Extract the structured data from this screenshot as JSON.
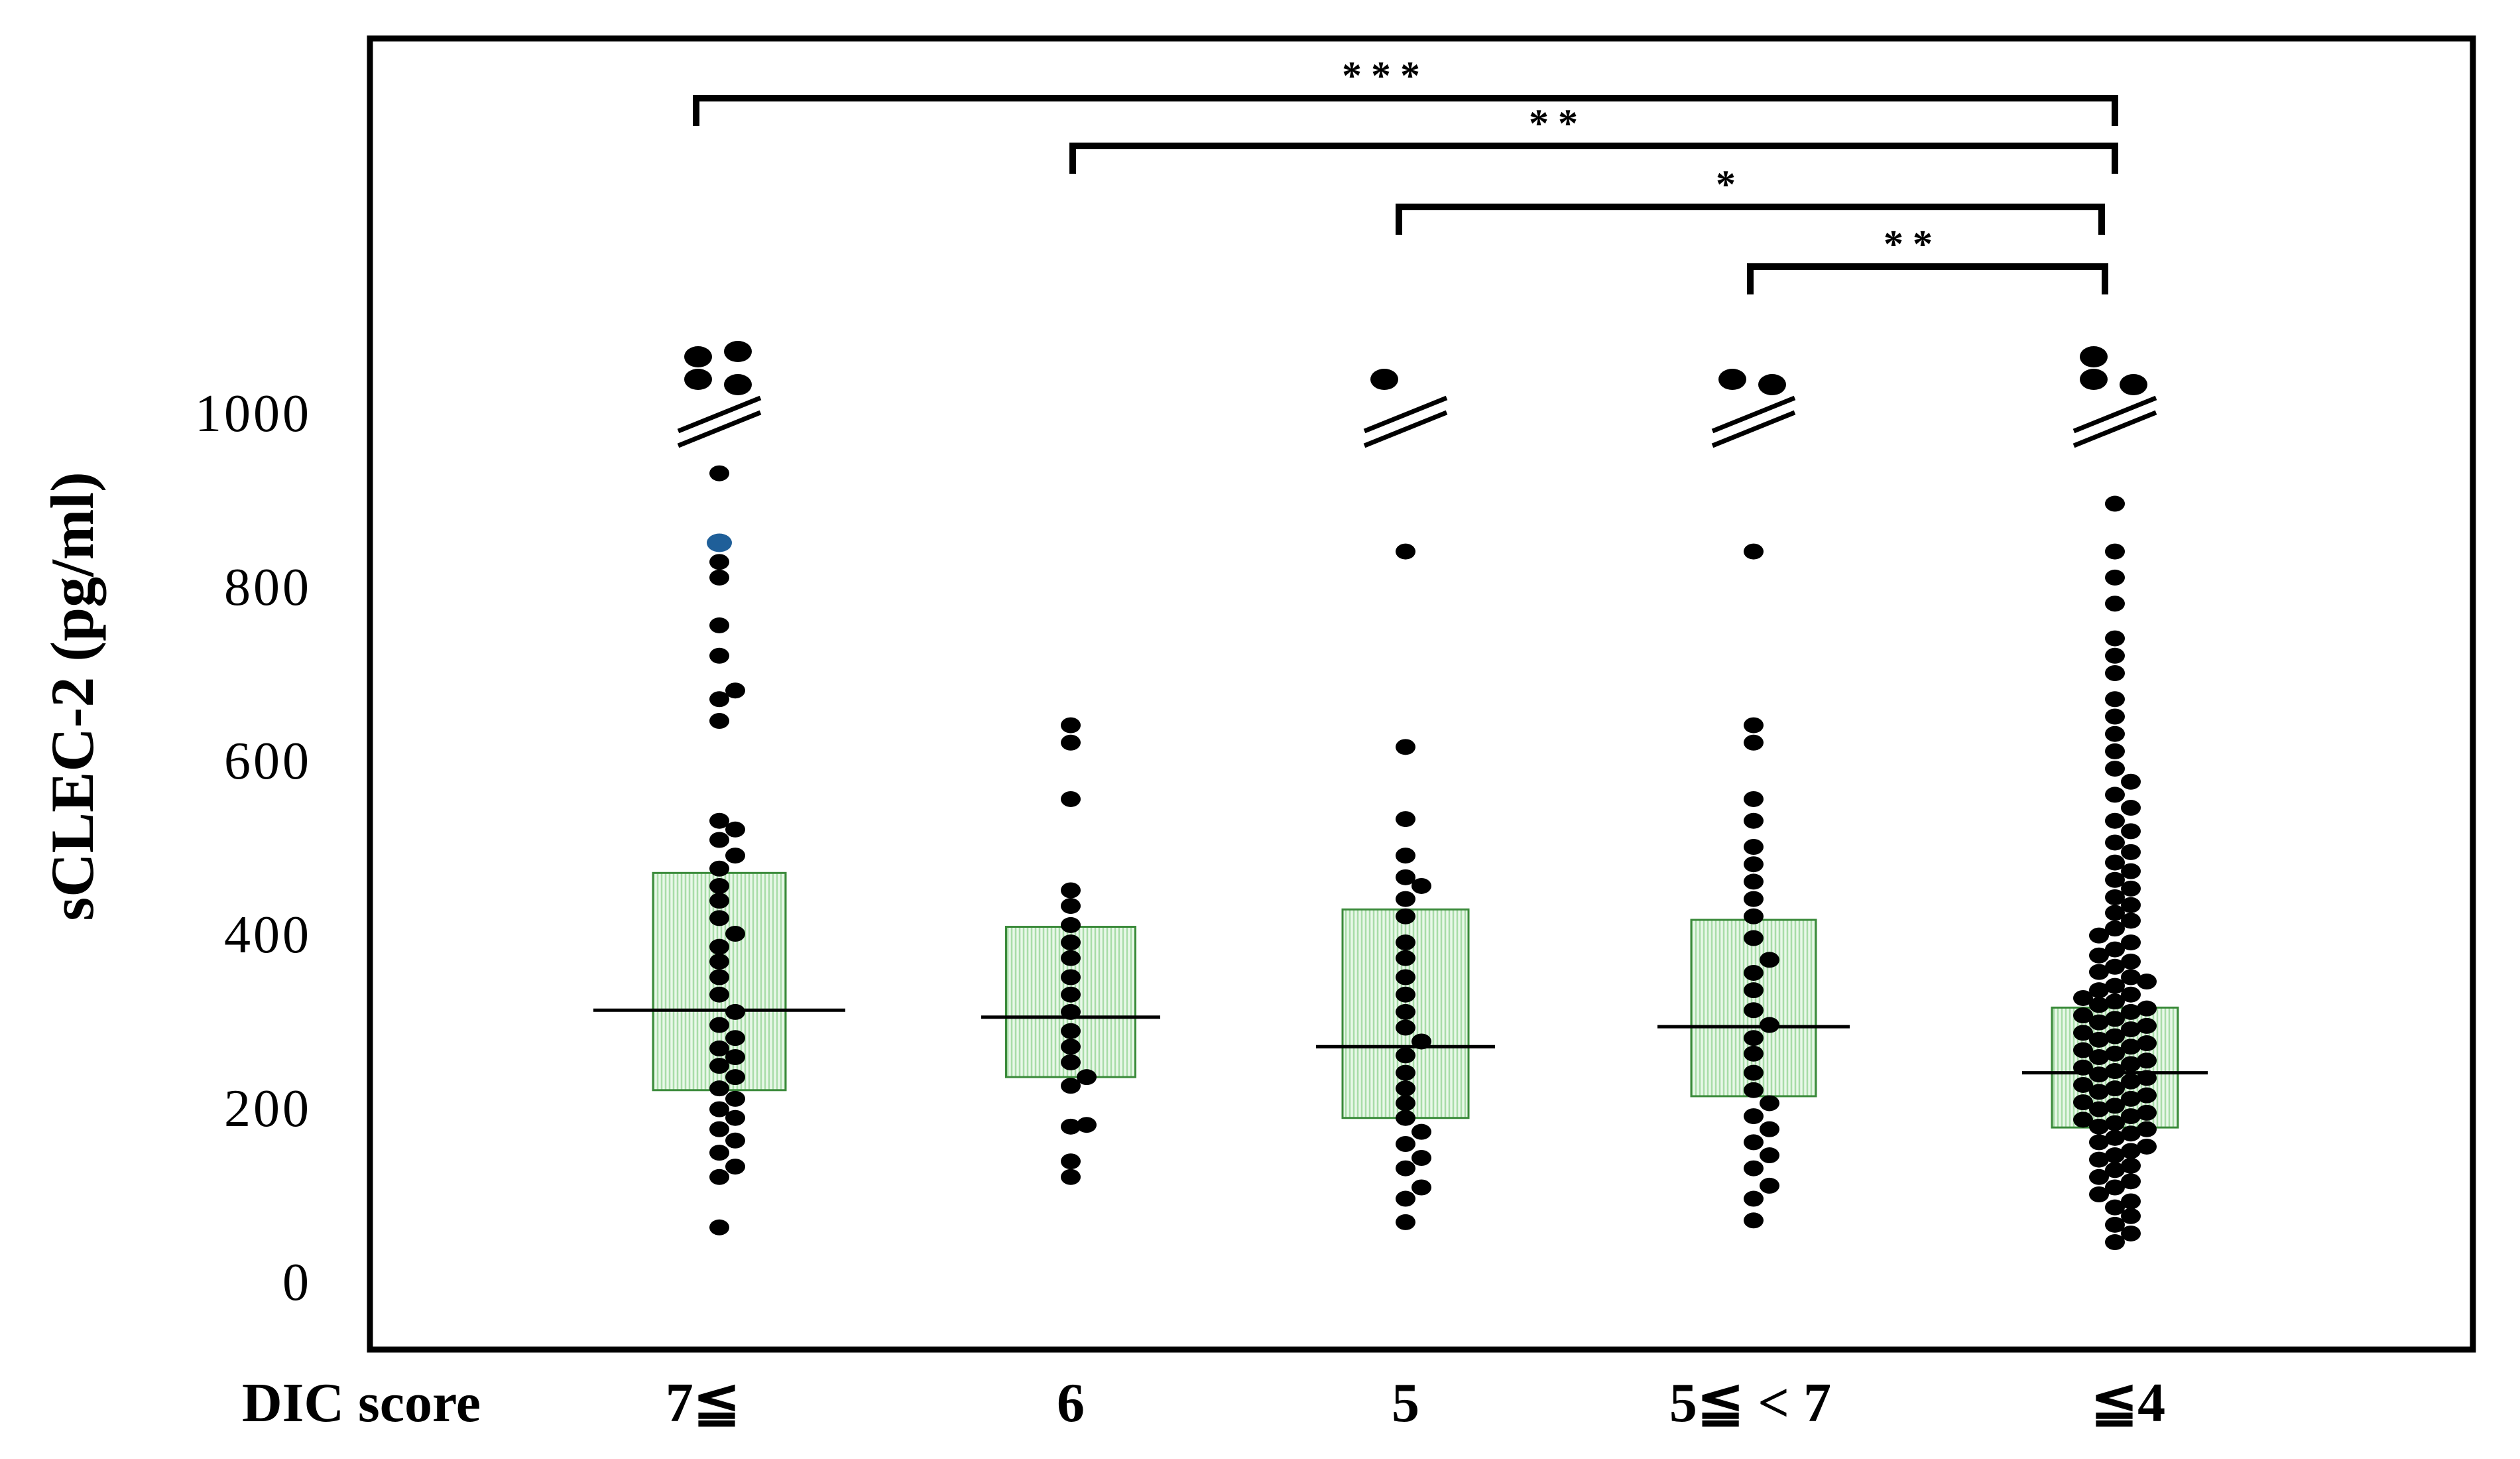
{
  "chart_data": {
    "type": "box_dot",
    "ylabel": "sCLEC-2 (pg/ml)",
    "xlabel": "DIC score",
    "ylim": [
      0,
      1000
    ],
    "yticks": [
      0,
      200,
      400,
      600,
      800,
      1000
    ],
    "ytick_labels": [
      "0",
      "200",
      "400",
      "600",
      "800",
      "1000"
    ],
    "axis_break_above": 1000,
    "grid": false,
    "categories": [
      "7≦",
      "6",
      "5",
      "5≦ < 7",
      "≦4"
    ],
    "boxes": [
      {
        "category": "7≦",
        "q1": 220,
        "median": 312,
        "q3": 470
      },
      {
        "category": "6",
        "q1": 235,
        "median": 304,
        "q3": 408
      },
      {
        "category": "5",
        "q1": 188,
        "median": 270,
        "q3": 428
      },
      {
        "category": "5≦ < 7",
        "q1": 213,
        "median": 293,
        "q3": 416
      },
      {
        "category": "≦4",
        "q1": 177,
        "median": 240,
        "q3": 315
      }
    ],
    "points": [
      [
        62,
        120,
        132,
        148,
        162,
        175,
        188,
        198,
        210,
        222,
        235,
        248,
        258,
        268,
        280,
        295,
        310,
        330,
        350,
        368,
        385,
        400,
        418,
        438,
        455,
        475,
        490,
        508,
        520,
        530,
        645,
        670,
        680,
        720,
        755,
        810,
        828,
        930
      ],
      [
        120,
        138,
        178,
        180,
        225,
        235,
        252,
        270,
        288,
        310,
        330,
        350,
        372,
        390,
        410,
        432,
        450,
        555,
        620,
        640
      ],
      [
        68,
        95,
        108,
        130,
        142,
        158,
        172,
        188,
        205,
        222,
        240,
        260,
        276,
        292,
        310,
        330,
        350,
        372,
        390,
        420,
        440,
        455,
        465,
        490,
        532,
        615,
        840
      ],
      [
        70,
        95,
        110,
        130,
        145,
        160,
        175,
        190,
        205,
        220,
        240,
        262,
        280,
        295,
        312,
        335,
        355,
        370,
        395,
        420,
        440,
        460,
        480,
        500,
        530,
        555,
        620,
        640,
        840
      ],
      [
        45,
        55,
        65,
        75,
        85,
        92,
        100,
        108,
        115,
        120,
        128,
        133,
        140,
        145,
        150,
        155,
        160,
        165,
        170,
        175,
        178,
        182,
        186,
        190,
        194,
        198,
        202,
        206,
        210,
        214,
        218,
        222,
        226,
        230,
        234,
        238,
        242,
        246,
        250,
        254,
        258,
        262,
        266,
        270,
        274,
        278,
        282,
        286,
        290,
        294,
        298,
        302,
        306,
        310,
        314,
        318,
        322,
        326,
        330,
        335,
        340,
        345,
        350,
        356,
        362,
        368,
        375,
        382,
        390,
        398,
        406,
        415,
        424,
        433,
        442,
        452,
        462,
        472,
        482,
        494,
        505,
        518,
        530,
        545,
        560,
        575,
        590,
        610,
        630,
        650,
        670,
        700,
        720,
        740,
        780,
        810,
        840,
        895
      ]
    ],
    "highlight_points": [
      {
        "category": "7≦",
        "value": 850,
        "color": "#1f5f99"
      }
    ],
    "broken_axis_points": [
      4,
      0,
      1,
      2,
      3
    ],
    "significance": [
      {
        "from": "7≦",
        "to": "≦4",
        "label": "***"
      },
      {
        "from": "6",
        "to": "≦4",
        "label": "**"
      },
      {
        "from": "5",
        "to": "≦4",
        "label": "*"
      },
      {
        "from": "5≦ < 7",
        "to": "≦4",
        "label": "**"
      }
    ],
    "colors": {
      "box_fill": "#e9f8e9",
      "box_hatch": "#a8dca8",
      "box_edge": "#3a8a3a",
      "point": "#000000",
      "highlight": "#1f5f99"
    }
  }
}
